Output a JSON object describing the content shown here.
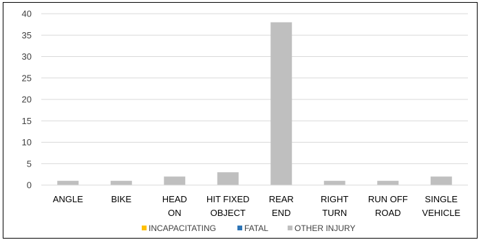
{
  "chart_data": {
    "type": "bar",
    "categories": [
      [
        "ANGLE"
      ],
      [
        "BIKE"
      ],
      [
        "HEAD",
        "ON"
      ],
      [
        "HIT FIXED",
        "OBJECT"
      ],
      [
        "REAR",
        "END"
      ],
      [
        "RIGHT",
        "TURN"
      ],
      [
        "RUN OFF",
        "ROAD"
      ],
      [
        "SINGLE",
        "VEHICLE"
      ]
    ],
    "series": [
      {
        "name": "INCAPACITATING",
        "color": "#FFC000",
        "values": [
          0,
          0,
          0,
          0,
          0,
          0,
          0,
          0
        ]
      },
      {
        "name": "FATAL",
        "color": "#2E75B6",
        "values": [
          0,
          0,
          0,
          0,
          0,
          0,
          0,
          0
        ]
      },
      {
        "name": "OTHER INJURY",
        "color": "#BFBFBF",
        "values": [
          1,
          1,
          2,
          3,
          38,
          1,
          1,
          2
        ]
      }
    ],
    "yticks": [
      "0",
      "5",
      "10",
      "15",
      "20",
      "25",
      "30",
      "35",
      "40"
    ],
    "ylim": [
      0,
      40
    ],
    "grid": true,
    "legend_position": "bottom"
  }
}
